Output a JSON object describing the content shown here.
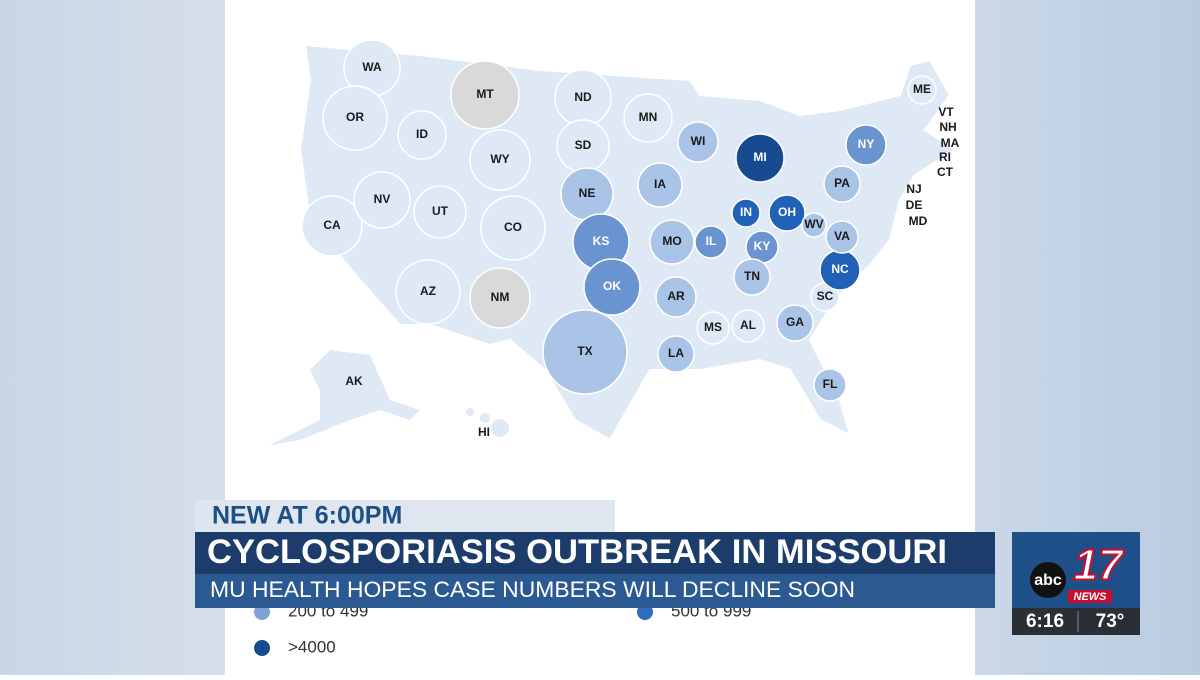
{
  "map": {
    "states": [
      {
        "label": "WA",
        "color": "#dfe9f6"
      },
      {
        "label": "OR",
        "color": "#dfe9f6"
      },
      {
        "label": "CA",
        "color": "#dfe9f6"
      },
      {
        "label": "NV",
        "color": "#dfe9f6"
      },
      {
        "label": "ID",
        "color": "#dfe9f6"
      },
      {
        "label": "MT",
        "color": "#d9d9d9"
      },
      {
        "label": "WY",
        "color": "#dfe9f6"
      },
      {
        "label": "UT",
        "color": "#dfe9f6"
      },
      {
        "label": "CO",
        "color": "#dfe9f6"
      },
      {
        "label": "AZ",
        "color": "#dfe9f6"
      },
      {
        "label": "NM",
        "color": "#d9d9d9"
      },
      {
        "label": "ND",
        "color": "#dfe9f6"
      },
      {
        "label": "SD",
        "color": "#dfe9f6"
      },
      {
        "label": "NE",
        "color": "#a9c4e6"
      },
      {
        "label": "KS",
        "color": "#6a94cf"
      },
      {
        "label": "OK",
        "color": "#6a94cf"
      },
      {
        "label": "TX",
        "color": "#a9c4e6"
      },
      {
        "label": "MN",
        "color": "#dfe9f6"
      },
      {
        "label": "IA",
        "color": "#a9c4e6"
      },
      {
        "label": "MO",
        "color": "#a9c4e6"
      },
      {
        "label": "AR",
        "color": "#a9c4e6"
      },
      {
        "label": "LA",
        "color": "#a9c4e6"
      },
      {
        "label": "WI",
        "color": "#a9c4e6"
      },
      {
        "label": "IL",
        "color": "#6a94cf"
      },
      {
        "label": "MI",
        "color": "#174a8f"
      },
      {
        "label": "IN",
        "color": "#1f62b8"
      },
      {
        "label": "OH",
        "color": "#1f62b8"
      },
      {
        "label": "KY",
        "color": "#6a94cf"
      },
      {
        "label": "TN",
        "color": "#a9c4e6"
      },
      {
        "label": "MS",
        "color": "#dfe9f6"
      },
      {
        "label": "AL",
        "color": "#dfe9f6"
      },
      {
        "label": "GA",
        "color": "#a9c4e6"
      },
      {
        "label": "FL",
        "color": "#a9c4e6"
      },
      {
        "label": "SC",
        "color": "#dfe9f6"
      },
      {
        "label": "NC",
        "color": "#1f62b8"
      },
      {
        "label": "VA",
        "color": "#a9c4e6"
      },
      {
        "label": "WV",
        "color": "#a9c4e6"
      },
      {
        "label": "PA",
        "color": "#a9c4e6"
      },
      {
        "label": "NY",
        "color": "#6a94cf"
      },
      {
        "label": "ME",
        "color": "#dfe9f6"
      },
      {
        "label": "VT",
        "color": "#dfe9f6"
      },
      {
        "label": "NH",
        "color": "#dfe9f6"
      },
      {
        "label": "MA",
        "color": "#a9c4e6"
      },
      {
        "label": "RI",
        "color": "#a9c4e6"
      },
      {
        "label": "CT",
        "color": "#a9c4e6"
      },
      {
        "label": "NJ",
        "color": "#a9c4e6"
      },
      {
        "label": "DE",
        "color": "#a9c4e6"
      },
      {
        "label": "MD",
        "color": "#a9c4e6"
      },
      {
        "label": "AK",
        "color": "#dfe9f6"
      },
      {
        "label": "HI",
        "color": "#dfe9f6"
      }
    ]
  },
  "legend": [
    {
      "label": "200 to 499",
      "color": "#7ea2d6"
    },
    {
      "label": "500 to 999",
      "color": "#2d6cbf"
    },
    {
      "label": ">4000",
      "color": "#174a8f"
    }
  ],
  "lower_third": {
    "kicker": "NEW AT 6:00PM",
    "headline": "CYCLOSPORIASIS OUTBREAK IN MISSOURI",
    "subhead": "MU HEALTH HOPES CASE NUMBERS WILL DECLINE SOON"
  },
  "station": {
    "network": "abc",
    "channel": "17",
    "brand": "NEWS",
    "time": "6:16",
    "temperature": "73°"
  }
}
